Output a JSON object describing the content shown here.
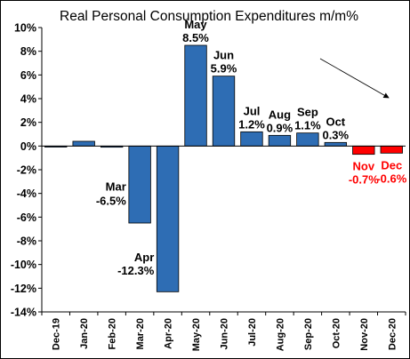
{
  "chart_data": {
    "type": "bar",
    "title": "Real Personal Consumption Expenditures m/m%",
    "xlabel": "",
    "ylabel": "",
    "ylim": [
      -14,
      10
    ],
    "ytick_step": 2,
    "ytick_labels": [
      "10%",
      "8%",
      "6%",
      "4%",
      "2%",
      "0%",
      "-2%",
      "-4%",
      "-6%",
      "-8%",
      "-10%",
      "-12%",
      "-14%"
    ],
    "categories": [
      "Dec-19",
      "Jan-20",
      "Feb-20",
      "Mar-20",
      "Apr-20",
      "May-20",
      "Jun-20",
      "Jul-20",
      "Aug-20",
      "Sep-20",
      "Oct-20",
      "Nov-20",
      "Dec-20"
    ],
    "values": [
      0.0,
      0.4,
      -0.1,
      -6.5,
      -12.3,
      8.5,
      5.9,
      1.2,
      0.9,
      1.1,
      0.3,
      -0.7,
      -0.6
    ],
    "data_labels": [
      {
        "index": 3,
        "lines": [
          "Mar",
          "-6.5%"
        ],
        "highlight": false
      },
      {
        "index": 4,
        "lines": [
          "Apr",
          "-12.3%"
        ],
        "highlight": false
      },
      {
        "index": 5,
        "lines": [
          "May",
          "8.5%"
        ],
        "highlight": false
      },
      {
        "index": 6,
        "lines": [
          "Jun",
          "5.9%"
        ],
        "highlight": false
      },
      {
        "index": 7,
        "lines": [
          "Jul",
          "1.2%"
        ],
        "highlight": false
      },
      {
        "index": 8,
        "lines": [
          "Aug",
          "0.9%"
        ],
        "highlight": false
      },
      {
        "index": 9,
        "lines": [
          "Sep",
          "1.1%"
        ],
        "highlight": false
      },
      {
        "index": 10,
        "lines": [
          "Oct",
          "0.3%"
        ],
        "highlight": false
      },
      {
        "index": 11,
        "lines": [
          "Nov",
          "-0.7%"
        ],
        "highlight": true
      },
      {
        "index": 12,
        "lines": [
          "Dec",
          "-0.6%"
        ],
        "highlight": true
      }
    ],
    "colors": {
      "bar": "#2e6db4",
      "bar_highlight": "#ff0000",
      "bar_edge": "#000000",
      "highlight_label": "#ff0000",
      "arrow": "#000000"
    },
    "grid": false,
    "legend": "none",
    "annotation": "trend-arrow-down-right"
  }
}
